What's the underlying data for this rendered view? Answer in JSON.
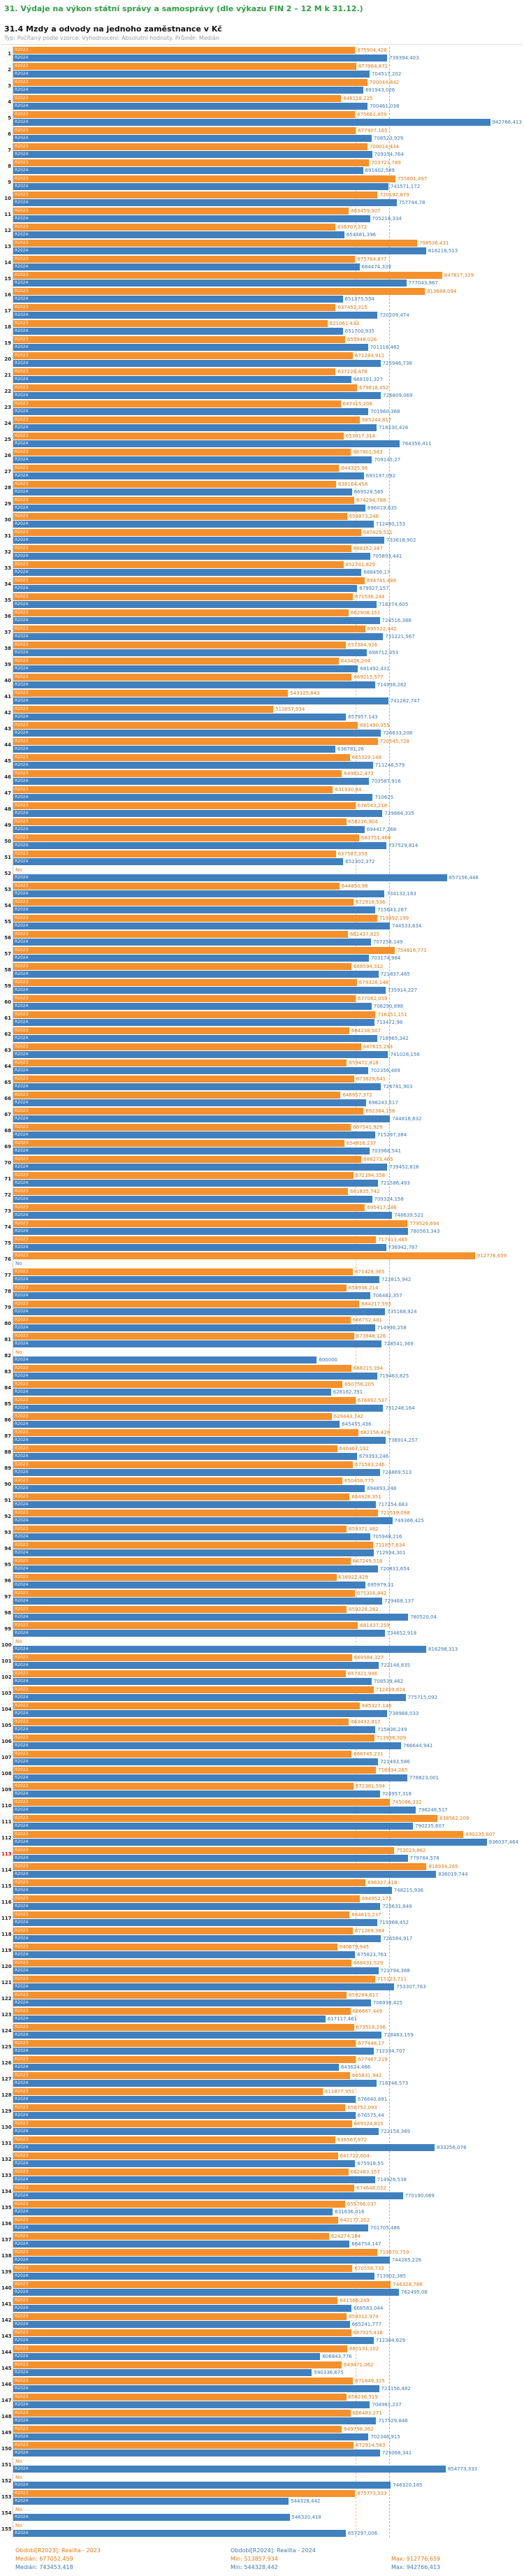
{
  "header": {
    "title": "31. Výdaje na výkon státní správy a samosprávy (dle výkazu FIN 2 – 12 M k 31.12.)",
    "subtitle": "31.4 Mzdy a odvody na jednoho zaměstnance v Kč",
    "meta": "Typ: Počítaný podle vzorce. Vyhodnocení: Absolutní hodnoty. Průměr: Medián"
  },
  "legend": {
    "r2023_label": "Období[R2023]: Realita - 2023",
    "r2024_label": "Období[R2024]: Realita - 2024",
    "r2023_stats": {
      "median": "Medián: 677052,459",
      "min": "Min: 513857,934",
      "max": "Max: 912776,659"
    },
    "r2024_stats": {
      "median": "Medián: 743453,418",
      "min": "Min: 544328,442",
      "max": "Max: 942766,413"
    }
  },
  "chart_data": {
    "type": "bar",
    "orientation": "horizontal",
    "title": "31.4 Mzdy a odvody na jednoho zaměstnance v Kč",
    "xlabel": "Kč na jednoho zaměstnance",
    "xlim": [
      0,
      960000
    ],
    "series_labels": {
      "r2023": "R2023",
      "r2024": "R2024"
    },
    "colors": {
      "r2023": "#f5912d",
      "r2024": "#4080bf",
      "highlight": "#d40000"
    },
    "missing_label": "No",
    "highlighted_rank": "113",
    "medians": {
      "r2023": 677052.459,
      "r2024": 743453.418
    },
    "stats": {
      "r2023": {
        "median": 677052.459,
        "min": 513857.934,
        "max": 912776.659
      },
      "r2024": {
        "median": 743453.418,
        "min": 544328.442,
        "max": 942766.413
      }
    },
    "rows": [
      {
        "rank": "1",
        "r2023": "675904,428",
        "r2024": "739394,403"
      },
      {
        "rank": "2",
        "r2023": "677964,871",
        "r2024": "704517,202"
      },
      {
        "rank": "3",
        "r2023": "700044,842",
        "r2024": "691943,026"
      },
      {
        "rank": "4",
        "r2023": "648118,225",
        "r2024": "700461,038"
      },
      {
        "rank": "5",
        "r2023": "675661,859",
        "r2024": "942766,413"
      },
      {
        "rank": "6",
        "r2023": "677407,165",
        "r2024": "708523,929"
      },
      {
        "rank": "7",
        "r2023": "700014,434",
        "r2024": "709354,764"
      },
      {
        "rank": "8",
        "r2023": "703721,789",
        "r2024": "691402,589"
      },
      {
        "rank": "9",
        "r2023": "755601,497",
        "r2024": "741571,172"
      },
      {
        "rank": "10",
        "r2023": "720192,879",
        "r2024": "757744,78"
      },
      {
        "rank": "11",
        "r2023": "663459,307",
        "r2024": "705216,334"
      },
      {
        "rank": "12",
        "r2023": "636707,372",
        "r2024": "654481,396"
      },
      {
        "rank": "13",
        "r2023": "798536,431",
        "r2024": "816218,513"
      },
      {
        "rank": "14",
        "r2023": "675784,877",
        "r2024": "684474,339"
      },
      {
        "rank": "15",
        "r2023": "847817,339",
        "r2024": "777043,967"
      },
      {
        "rank": "16",
        "r2023": "813688,094",
        "r2024": "651375,554"
      },
      {
        "rank": "17",
        "r2023": "637452,315",
        "r2024": "720209,474"
      },
      {
        "rank": "18",
        "r2023": "621061,433",
        "r2024": "651700,935"
      },
      {
        "rank": "19",
        "r2023": "655948,026",
        "r2024": "701118,462"
      },
      {
        "rank": "20",
        "r2023": "671284,911",
        "r2024": "725946,738"
      },
      {
        "rank": "21",
        "r2023": "637228,478",
        "r2024": "668191,327"
      },
      {
        "rank": "22",
        "r2023": "679818,452",
        "r2024": "726809,069"
      },
      {
        "rank": "23",
        "r2023": "647315,206",
        "r2024": "701960,368"
      },
      {
        "rank": "24",
        "r2023": "685244,817",
        "r2024": "718330,426"
      },
      {
        "rank": "25",
        "r2023": "653017,314",
        "r2024": "764356,411"
      },
      {
        "rank": "26",
        "r2023": "667801,583",
        "r2024": "709145,27"
      },
      {
        "rank": "27",
        "r2023": "644325,96",
        "r2024": "693197,092"
      },
      {
        "rank": "28",
        "r2023": "638164,458",
        "r2024": "669528,565"
      },
      {
        "rank": "29",
        "r2023": "674294,788",
        "r2024": "696019,635"
      },
      {
        "rank": "30",
        "r2023": "659873,246",
        "r2024": "712480,153"
      },
      {
        "rank": "31",
        "r2023": "687429,511",
        "r2024": "733618,902"
      },
      {
        "rank": "32",
        "r2023": "668152,387",
        "r2024": "705893,441"
      },
      {
        "rank": "33",
        "r2023": "652741,829",
        "r2024": "688456,17"
      },
      {
        "rank": "34",
        "r2023": "694741,488",
        "r2024": "679927,157"
      },
      {
        "rank": "35",
        "r2023": "671536,244",
        "r2024": "718274,605"
      },
      {
        "rank": "36",
        "r2023": "662908,151",
        "r2024": "724516,388"
      },
      {
        "rank": "37",
        "r2023": "695522,442",
        "r2024": "731221,567"
      },
      {
        "rank": "38",
        "r2023": "657384,926",
        "r2024": "698712,353"
      },
      {
        "rank": "39",
        "r2023": "643426,204",
        "r2024": "681492,431"
      },
      {
        "rank": "40",
        "r2023": "669215,577",
        "r2024": "714938,262"
      },
      {
        "rank": "41",
        "r2023": "543325,843",
        "r2024": "741282,747"
      },
      {
        "rank": "42",
        "r2023": "513857,934",
        "r2024": "657957,143"
      },
      {
        "rank": "43",
        "r2023": "681490,355",
        "r2024": "726633,208"
      },
      {
        "rank": "44",
        "r2023": "720545,728",
        "r2024": "636781,26"
      },
      {
        "rank": "45",
        "r2023": "665329,148",
        "r2024": "711246,579"
      },
      {
        "rank": "46",
        "r2023": "649812,473",
        "r2024": "703587,916"
      },
      {
        "rank": "47",
        "r2023": "631930,84",
        "r2024": "710625"
      },
      {
        "rank": "48",
        "r2023": "676543,218",
        "r2024": "729864,335"
      },
      {
        "rank": "49",
        "r2023": "658226,904",
        "r2024": "694417,268"
      },
      {
        "rank": "50",
        "r2023": "683751,466",
        "r2024": "737529,814"
      },
      {
        "rank": "51",
        "r2023": "637587,359",
        "r2024": "652302,372"
      },
      {
        "rank": "52",
        "r2023": null,
        "r2024": "857156,446"
      },
      {
        "rank": "53",
        "r2023": "644850,96",
        "r2024": "734132,183"
      },
      {
        "rank": "54",
        "r2023": "672918,536",
        "r2024": "715643,287"
      },
      {
        "rank": "55",
        "r2023": "719392,199",
        "r2024": "744533,634"
      },
      {
        "rank": "56",
        "r2023": "661437,825",
        "r2024": "707258,149"
      },
      {
        "rank": "57",
        "r2023": "754816,771",
        "r2024": "703174,984"
      },
      {
        "rank": "58",
        "r2023": "668594,312",
        "r2024": "721837,465"
      },
      {
        "rank": "59",
        "r2023": "679326,148",
        "r2024": "735914,227"
      },
      {
        "rank": "60",
        "r2023": "677082,059",
        "r2024": "708290,898"
      },
      {
        "rank": "61",
        "r2023": "716151,151",
        "r2024": "713472,98"
      },
      {
        "rank": "62",
        "r2023": "664238,507",
        "r2024": "718965,342"
      },
      {
        "rank": "63",
        "r2023": "687615,293",
        "r2024": "741028,156"
      },
      {
        "rank": "64",
        "r2023": "659472,818",
        "r2024": "702356,489"
      },
      {
        "rank": "65",
        "r2023": "673829,641",
        "r2024": "726781,903"
      },
      {
        "rank": "66",
        "r2023": "646957,372",
        "r2024": "698243,517"
      },
      {
        "rank": "67",
        "r2023": "692384,156",
        "r2024": "744816,632"
      },
      {
        "rank": "68",
        "r2023": "667541,928",
        "r2024": "715297,384"
      },
      {
        "rank": "69",
        "r2023": "654816,237",
        "r2024": "703968,541"
      },
      {
        "rank": "70",
        "r2023": "688273,465",
        "r2024": "739452,816"
      },
      {
        "rank": "71",
        "r2023": "672194,358",
        "r2024": "721586,493"
      },
      {
        "rank": "72",
        "r2023": "661835,742",
        "r2024": "709324,158"
      },
      {
        "rank": "73",
        "r2023": "695417,286",
        "r2024": "748639,521"
      },
      {
        "rank": "74",
        "r2023": "779526,694",
        "r2024": "780563,343"
      },
      {
        "rank": "75",
        "r2023": "717013,465",
        "r2024": "736942,787"
      },
      {
        "rank": "76",
        "r2023": "912776,659",
        "r2024": null
      },
      {
        "rank": "77",
        "r2023": "671428,365",
        "r2024": "723815,942"
      },
      {
        "rank": "78",
        "r2023": "658936,214",
        "r2024": "706482,357"
      },
      {
        "rank": "79",
        "r2023": "684217,593",
        "r2024": "735168,924"
      },
      {
        "rank": "80",
        "r2023": "666752,481",
        "r2024": "714936,258"
      },
      {
        "rank": "81",
        "r2023": "673948,126",
        "r2024": "728541,369"
      },
      {
        "rank": "82",
        "r2023": null,
        "r2024": "600000"
      },
      {
        "rank": "83",
        "r2023": "668215,394",
        "r2024": "719463,825"
      },
      {
        "rank": "84",
        "r2023": "650756,205",
        "r2024": "628162,791"
      },
      {
        "rank": "85",
        "r2023": "676892,537",
        "r2024": "731248,164"
      },
      {
        "rank": "86",
        "r2023": "629443,742",
        "r2024": "645455,436"
      },
      {
        "rank": "87",
        "r2023": "682156,428",
        "r2024": "736914,257"
      },
      {
        "rank": "88",
        "r2023": "640467,192",
        "r2024": "679393,246"
      },
      {
        "rank": "89",
        "r2023": "671583,246",
        "r2024": "724869,513"
      },
      {
        "rank": "90",
        "r2023": "650456,775",
        "r2024": "694893,248"
      },
      {
        "rank": "91",
        "r2023": "664928,351",
        "r2024": "717254,683"
      },
      {
        "rank": "92",
        "r2023": "721519,098",
        "r2024": "749366,425"
      },
      {
        "rank": "93",
        "r2023": "659371,482",
        "r2024": "705948,216"
      },
      {
        "rank": "94",
        "r2023": "711857,634",
        "r2024": "712934,301"
      },
      {
        "rank": "95",
        "r2023": "667249,518",
        "r2024": "720831,654"
      },
      {
        "rank": "96",
        "r2023": "638922,429",
        "r2024": "695979,31"
      },
      {
        "rank": "97",
        "r2023": "675316,842",
        "r2024": "729468,137"
      },
      {
        "rank": "98",
        "r2023": "659228,282",
        "r2024": "780520,04"
      },
      {
        "rank": "99",
        "r2023": "681437,259",
        "r2024": "734652,918"
      },
      {
        "rank": "100",
        "r2023": null,
        "r2024": "816298,313"
      },
      {
        "rank": "101",
        "r2023": "669584,327",
        "r2024": "722146,835"
      },
      {
        "rank": "102",
        "r2023": "657321,946",
        "r2024": "708539,462"
      },
      {
        "rank": "103",
        "r2023": "712459,824",
        "r2024": "775715,092"
      },
      {
        "rank": "104",
        "r2023": "685327,146",
        "r2024": "738988,033"
      },
      {
        "rank": "105",
        "r2023": "663492,817",
        "r2024": "715836,249"
      },
      {
        "rank": "106",
        "r2023": "713936,309",
        "r2024": "766644,941"
      },
      {
        "rank": "107",
        "r2023": "668745,231",
        "r2024": "721493,586"
      },
      {
        "rank": "108",
        "r2023": "716934,265",
        "r2024": "778823,001"
      },
      {
        "rank": "109",
        "r2023": "672381,594",
        "r2024": "724957,318"
      },
      {
        "rank": "110",
        "r2023": "745086,232",
        "r2024": "796248,517"
      },
      {
        "rank": "111",
        "r2023": "838562,209",
        "r2024": "790235,607"
      },
      {
        "rank": "112",
        "r2023": "890235,607",
        "r2024": "936037,464"
      },
      {
        "rank": "113",
        "r2023": "753023,862",
        "r2024": "779784,578"
      },
      {
        "rank": "114",
        "r2023": "816934,265",
        "r2024": "836019,744"
      },
      {
        "rank": "115",
        "r2023": "696327,418",
        "r2024": "748215,936"
      },
      {
        "rank": "116",
        "r2023": "684952,173",
        "r2024": "725631,849"
      },
      {
        "rank": "117",
        "r2023": "664815,237",
        "r2024": "719368,452"
      },
      {
        "rank": "118",
        "r2023": "671269,384",
        "r2024": "726584,917"
      },
      {
        "rank": "119",
        "r2023": "640679,945",
        "r2024": "675823,761"
      },
      {
        "rank": "120",
        "r2023": "668431,529",
        "r2024": "721794,368"
      },
      {
        "rank": "121",
        "r2023": "715123,711",
        "r2024": "753307,763"
      },
      {
        "rank": "122",
        "r2023": "659284,617",
        "r2024": "706938,425"
      },
      {
        "rank": "123",
        "r2023": "666667,449",
        "r2024": "617117,461"
      },
      {
        "rank": "124",
        "r2023": "673518,296",
        "r2024": "728463,159"
      },
      {
        "rank": "125",
        "r2023": "677448,17",
        "r2024": "712334,707"
      },
      {
        "rank": "126",
        "r2023": "677467,219",
        "r2024": "643624,466"
      },
      {
        "rank": "127",
        "r2023": "665831,942",
        "r2024": "718246,573"
      },
      {
        "rank": "128",
        "r2023": "611877,951",
        "r2024": "676640,891"
      },
      {
        "rank": "129",
        "r2023": "656752,093",
        "r2024": "676575,44"
      },
      {
        "rank": "130",
        "r2023": "669324,815",
        "r2024": "722158,369"
      },
      {
        "rank": "131",
        "r2023": "636567,972",
        "r2024": "833256,076"
      },
      {
        "rank": "132",
        "r2023": "641722,604",
        "r2024": "675918,55"
      },
      {
        "rank": "133",
        "r2023": "662483,157",
        "r2024": "714926,538"
      },
      {
        "rank": "134",
        "r2023": "674648,032",
        "r2024": "770190,069"
      },
      {
        "rank": "135",
        "r2023": "655766,037",
        "r2024": "631636,016"
      },
      {
        "rank": "136",
        "r2023": "642177,202",
        "r2024": "701705,486"
      },
      {
        "rank": "137",
        "r2023": "624274,184",
        "r2024": "664754,147"
      },
      {
        "rank": "138",
        "r2023": "719670,759",
        "r2024": "744285,228"
      },
      {
        "rank": "139",
        "r2023": "670558,733",
        "r2024": "713902,385"
      },
      {
        "rank": "140",
        "r2023": "746328,786",
        "r2024": "762495,08"
      },
      {
        "rank": "141",
        "r2023": "641566,249",
        "r2024": "668583,044"
      },
      {
        "rank": "142",
        "r2023": "659312,974",
        "r2024": "665241,777"
      },
      {
        "rank": "143",
        "r2023": "667925,418",
        "r2024": "712384,629"
      },
      {
        "rank": "144",
        "r2023": "660131,102",
        "r2024": "606843,776"
      },
      {
        "rank": "145",
        "r2023": "649471,062",
        "r2024": "590336,675"
      },
      {
        "rank": "146",
        "r2023": "671849,325",
        "r2024": "723156,482"
      },
      {
        "rank": "147",
        "r2023": "658236,519",
        "r2024": "704981,237"
      },
      {
        "rank": "148",
        "r2023": "666483,271",
        "r2024": "717529,846"
      },
      {
        "rank": "149",
        "r2023": "649758,362",
        "r2024": "702346,915"
      },
      {
        "rank": "150",
        "r2023": "672914,583",
        "r2024": "725068,341"
      },
      {
        "rank": "151",
        "r2023": null,
        "r2024": "854773,333"
      },
      {
        "rank": "152",
        "r2023": null,
        "r2024": "746320,185"
      },
      {
        "rank": "153",
        "r2023": "675773,333",
        "r2024": "544328,442"
      },
      {
        "rank": "154",
        "r2023": null,
        "r2024": "546320,418"
      },
      {
        "rank": "155",
        "r2023": null,
        "r2024": "657297,006"
      }
    ]
  }
}
